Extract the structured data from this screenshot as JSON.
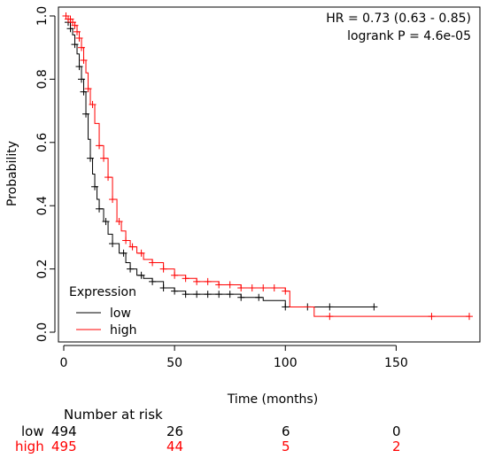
{
  "chart_data": {
    "type": "line",
    "title": "",
    "xlabel": "Time (months)",
    "ylabel": "Probability",
    "xlim": [
      0,
      185
    ],
    "ylim": [
      0,
      1.0
    ],
    "x_ticks": [
      "0",
      "50",
      "100",
      "150"
    ],
    "y_ticks": [
      "0.0",
      "0.2",
      "0.4",
      "0.6",
      "0.8",
      "1.0"
    ],
    "annotations": {
      "hr": "HR = 0.73 (0.63 - 0.85)",
      "logrank": "logrank P = 4.6e-05"
    },
    "legend": {
      "title": "Expression",
      "placement": "bottom-left",
      "entries": [
        {
          "label": "low",
          "color": "#000000"
        },
        {
          "label": "high",
          "color": "#ff0000"
        }
      ]
    },
    "series": [
      {
        "name": "low",
        "color": "#000000",
        "x": [
          0,
          2,
          3,
          4,
          5,
          6,
          7,
          8,
          9,
          10,
          11,
          12,
          13,
          14,
          15,
          16,
          18,
          20,
          22,
          25,
          28,
          30,
          33,
          36,
          40,
          45,
          50,
          55,
          60,
          70,
          80,
          90,
          100,
          110,
          120,
          130,
          140
        ],
        "y": [
          1.0,
          0.98,
          0.96,
          0.94,
          0.91,
          0.88,
          0.84,
          0.8,
          0.76,
          0.69,
          0.61,
          0.55,
          0.5,
          0.46,
          0.42,
          0.39,
          0.35,
          0.31,
          0.28,
          0.25,
          0.22,
          0.2,
          0.18,
          0.17,
          0.16,
          0.14,
          0.13,
          0.12,
          0.12,
          0.12,
          0.11,
          0.1,
          0.08,
          0.08,
          0.08,
          0.08,
          0.08
        ],
        "censor_x": [
          2,
          3,
          5,
          7,
          8,
          9,
          10,
          12,
          14,
          16,
          19,
          22,
          27,
          30,
          35,
          40,
          45,
          50,
          55,
          60,
          65,
          70,
          75,
          80,
          88,
          100,
          110,
          120,
          140
        ]
      },
      {
        "name": "high",
        "color": "#ff0000",
        "x": [
          0,
          2,
          4,
          5,
          6,
          7,
          8,
          9,
          10,
          11,
          12,
          14,
          16,
          18,
          20,
          22,
          24,
          26,
          28,
          30,
          33,
          36,
          40,
          45,
          50,
          55,
          60,
          70,
          80,
          90,
          100,
          102,
          110,
          113,
          120,
          140,
          160,
          183
        ],
        "y": [
          1.0,
          0.99,
          0.98,
          0.97,
          0.95,
          0.93,
          0.9,
          0.86,
          0.82,
          0.77,
          0.72,
          0.66,
          0.59,
          0.55,
          0.49,
          0.42,
          0.35,
          0.32,
          0.29,
          0.27,
          0.25,
          0.23,
          0.22,
          0.2,
          0.18,
          0.17,
          0.16,
          0.15,
          0.14,
          0.14,
          0.13,
          0.08,
          0.08,
          0.05,
          0.05,
          0.05,
          0.05,
          0.05
        ],
        "censor_x": [
          1,
          2,
          3,
          4,
          5,
          6,
          7,
          8,
          9,
          11,
          13,
          16,
          18,
          20,
          22,
          25,
          28,
          31,
          35,
          40,
          45,
          50,
          55,
          60,
          65,
          70,
          75,
          80,
          85,
          90,
          95,
          100,
          120,
          166,
          183
        ]
      }
    ]
  },
  "risk_table": {
    "header": "Number at risk",
    "rows": [
      {
        "label": "low",
        "color": "#000000",
        "values": [
          "494",
          "26",
          "6",
          "0"
        ]
      },
      {
        "label": "high",
        "color": "#ff0000",
        "values": [
          "495",
          "44",
          "5",
          "2"
        ]
      }
    ]
  }
}
